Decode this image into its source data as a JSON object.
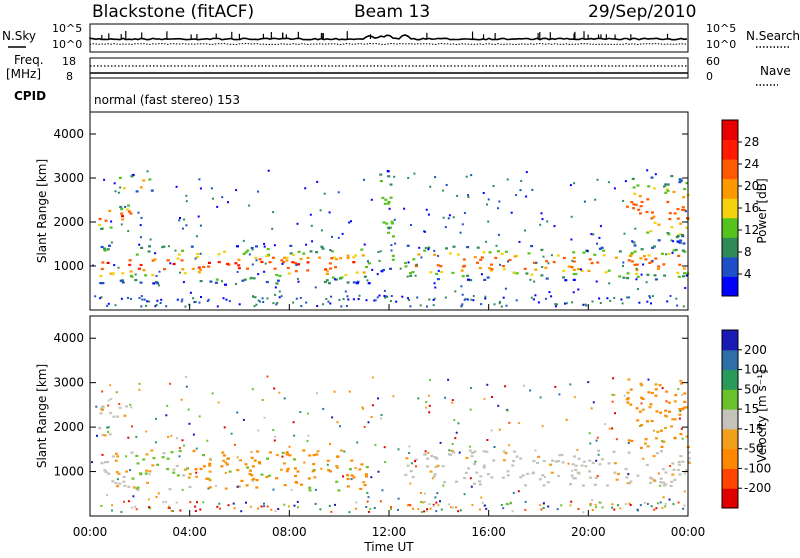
{
  "header": {
    "title": "Blackstone (fitACF)",
    "beam": "Beam 13",
    "date": "29/Sep/2010"
  },
  "param_panels": {
    "nsky_label": "N.Sky",
    "nsearch_label": "N.Search",
    "noise_ticks_left": [
      "10^5",
      "10^0"
    ],
    "noise_ticks_right": [
      "10^5",
      "10^0"
    ],
    "freq_label_top": "Freq.",
    "freq_label_bottom": "[MHz]",
    "freq_ticks": [
      "18",
      "8"
    ],
    "nave_label": "Nave",
    "nave_ticks": [
      "60",
      "0"
    ],
    "cpid_label": "CPID",
    "cpid_text": "normal (fast stereo) 153"
  },
  "colors": {
    "power_scale": [
      "#0000ff",
      "#1f4fc8",
      "#2e8b57",
      "#55c21e",
      "#f5d20e",
      "#ff9900",
      "#ff5a00",
      "#ff1a00",
      "#e60000"
    ],
    "velocity_scale": [
      "#1a1ab5",
      "#2e6fa8",
      "#2a9a5a",
      "#6ac12a",
      "#c3c3b9",
      "#f2a01c",
      "#ff8800",
      "#ff4500",
      "#e00000"
    ]
  },
  "chart_data": [
    {
      "type": "heatmap",
      "panel": "power",
      "ylabel": "Slant Range [km]",
      "yticks": [
        "1000",
        "2000",
        "3000",
        "4000"
      ],
      "ylim": [
        0,
        4500
      ],
      "xlim_hours": [
        0,
        24
      ],
      "colorbar_label": "Power [dB]",
      "colorbar_ticks": [
        "4",
        "8",
        "12",
        "16",
        "20",
        "24",
        "28"
      ],
      "colorbar_range": [
        0,
        32
      ],
      "bands": [
        {
          "t0": 0.3,
          "t1": 11.2,
          "r0": 600,
          "r1": 1500
        },
        {
          "t0": 0.3,
          "t1": 1.6,
          "r0": 1800,
          "r1": 2500
        },
        {
          "t0": 1.1,
          "t1": 2.5,
          "r0": 2700,
          "r1": 3100
        },
        {
          "t0": 11.6,
          "t1": 12.2,
          "r0": 800,
          "r1": 3200
        },
        {
          "t0": 12.6,
          "t1": 24,
          "r0": 700,
          "r1": 1500
        },
        {
          "t0": 21.5,
          "t1": 24,
          "r0": 1500,
          "r1": 3100
        }
      ]
    },
    {
      "type": "heatmap",
      "panel": "velocity",
      "ylabel": "Slant Range [km]",
      "yticks": [
        "1000",
        "2000",
        "3000",
        "4000"
      ],
      "ylim": [
        0,
        4500
      ],
      "xlim_hours": [
        0,
        24
      ],
      "xlabel": "Time UT",
      "xticks": [
        "00:00",
        "04:00",
        "08:00",
        "12:00",
        "16:00",
        "20:00",
        "00:00"
      ],
      "colorbar_label": "Velocity [m s⁻¹]",
      "colorbar_ticks": [
        "200",
        "100",
        "50",
        "15",
        "-15",
        "-50",
        "-100",
        "-200"
      ],
      "colorbar_range": [
        -250,
        250
      ],
      "bands": [
        {
          "t0": 0.3,
          "t1": 11.2,
          "r0": 600,
          "r1": 1500
        },
        {
          "t0": 0.3,
          "t1": 1.6,
          "r0": 1800,
          "r1": 2500
        },
        {
          "t0": 12.6,
          "t1": 24,
          "r0": 700,
          "r1": 1500
        },
        {
          "t0": 21.5,
          "t1": 24,
          "r0": 1500,
          "r1": 3100
        }
      ]
    }
  ]
}
